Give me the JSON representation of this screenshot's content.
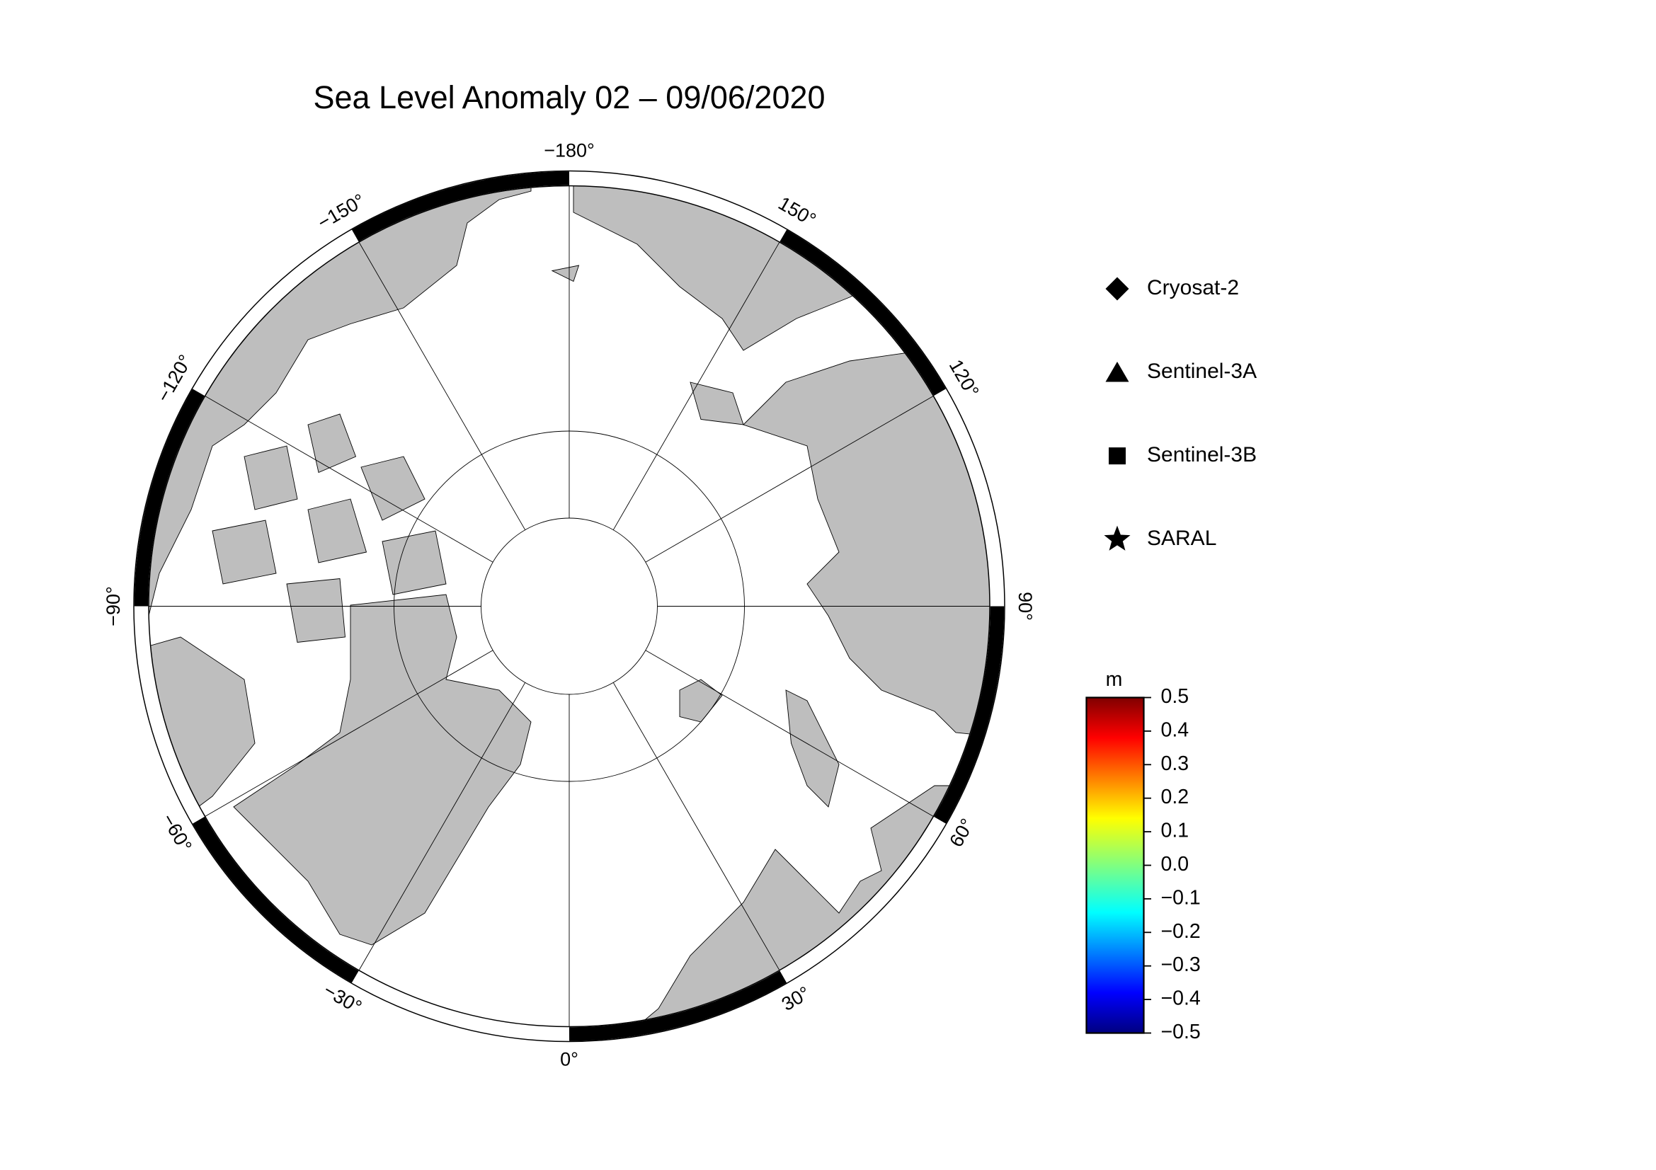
{
  "title": "Sea Level Anomaly 02 – 09/06/2020",
  "map": {
    "projection": "north-polar-stereographic",
    "longitude_labels": [
      {
        "value": -180,
        "label": "−180°"
      },
      {
        "value": -150,
        "label": "−150°"
      },
      {
        "value": -120,
        "label": "−120°"
      },
      {
        "value": -90,
        "label": "−90°"
      },
      {
        "value": -60,
        "label": "−60°"
      },
      {
        "value": -30,
        "label": "−30°"
      },
      {
        "value": 0,
        "label": "0°"
      },
      {
        "value": 30,
        "label": "30°"
      },
      {
        "value": 60,
        "label": "60°"
      },
      {
        "value": 90,
        "label": "90°"
      },
      {
        "value": 120,
        "label": "120°"
      },
      {
        "value": 150,
        "label": "150°"
      }
    ]
  },
  "legend": [
    {
      "name": "Cryosat-2",
      "marker": "diamond"
    },
    {
      "name": "Sentinel-3A",
      "marker": "triangle"
    },
    {
      "name": "Sentinel-3B",
      "marker": "square"
    },
    {
      "name": "SARAL",
      "marker": "star"
    }
  ],
  "colorbar": {
    "label": "m",
    "colormap": "jet",
    "lim": [
      -0.5,
      0.5
    ],
    "ticks": [
      0.5,
      0.4,
      0.3,
      0.2,
      0.1,
      {
        "value": 0,
        "label": "0.0"
      },
      {
        "value": -0.1,
        "label": "−0.1"
      },
      {
        "value": -0.2,
        "label": "−0.2"
      },
      {
        "value": -0.3,
        "label": "−0.3"
      },
      {
        "value": -0.4,
        "label": "−0.4"
      },
      {
        "value": -0.5,
        "label": "−0.5"
      }
    ]
  }
}
